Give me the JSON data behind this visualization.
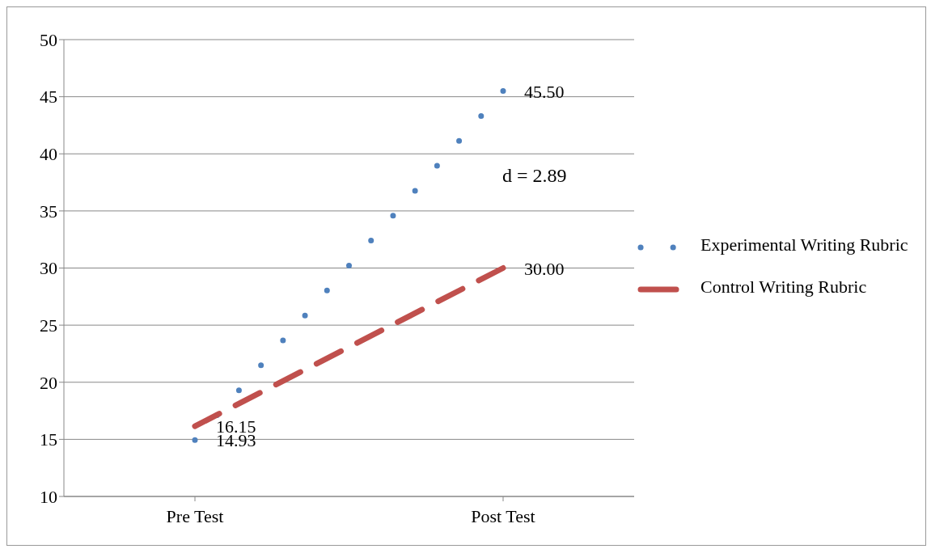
{
  "chart_data": {
    "type": "line",
    "categories": [
      "Pre Test",
      "Post Test"
    ],
    "series": [
      {
        "name": "Experimental Writing Rubric",
        "color": "#4f81bd",
        "values": [
          14.93,
          45.5
        ],
        "value_labels": [
          "14.93",
          "45.50"
        ],
        "line_style": "dotted"
      },
      {
        "name": "Control Writing Rubric",
        "color": "#c0504d",
        "values": [
          16.15,
          30.0
        ],
        "value_labels": [
          "16.15",
          "30.00"
        ],
        "line_style": "dashed"
      }
    ],
    "ylim": [
      10,
      50
    ],
    "yticks": [
      10,
      15,
      20,
      25,
      30,
      35,
      40,
      45,
      50
    ],
    "grid": "y",
    "legend": "right",
    "marker": "none",
    "annotations": [
      "d = 2.89"
    ]
  }
}
